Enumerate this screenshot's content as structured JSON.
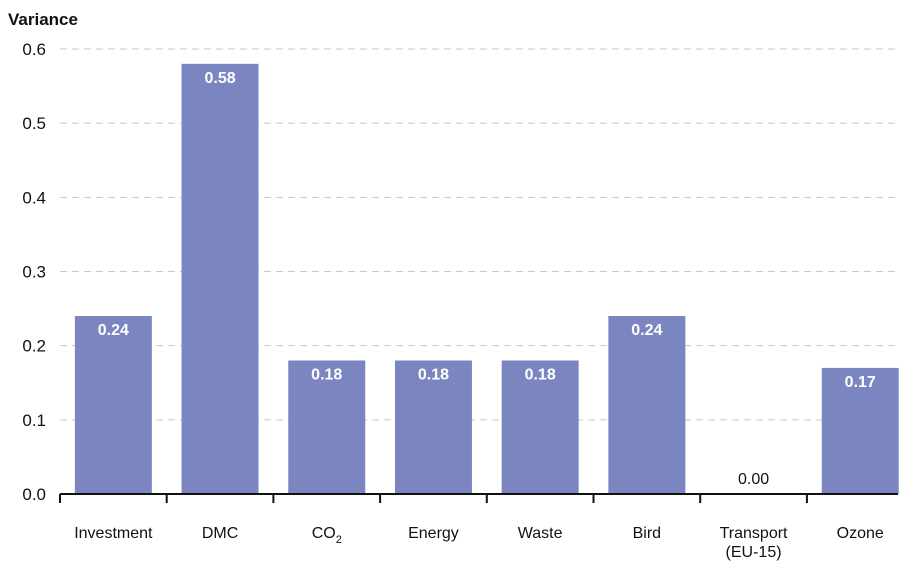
{
  "chart_data": {
    "type": "bar",
    "ylabel": "Variance",
    "ylim": [
      0,
      0.6
    ],
    "yticks": [
      "0.0",
      "0.1",
      "0.2",
      "0.3",
      "0.4",
      "0.5",
      "0.6"
    ],
    "grid": true,
    "bar_color": "#7b86c0",
    "categories": [
      {
        "main": "Investment",
        "sub": "",
        "sub_line": ""
      },
      {
        "main": "DMC",
        "sub": "",
        "sub_line": ""
      },
      {
        "main": "CO",
        "sub": "2",
        "sub_line": ""
      },
      {
        "main": "Energy",
        "sub": "",
        "sub_line": ""
      },
      {
        "main": "Waste",
        "sub": "",
        "sub_line": ""
      },
      {
        "main": "Bird",
        "sub": "",
        "sub_line": ""
      },
      {
        "main": "Transport",
        "sub": "",
        "sub_line": "(EU-15)"
      },
      {
        "main": "Ozone",
        "sub": "",
        "sub_line": ""
      }
    ],
    "values": [
      0.24,
      0.58,
      0.18,
      0.18,
      0.18,
      0.24,
      0.0,
      0.17
    ],
    "labels": [
      "0.24",
      "0.58",
      "0.18",
      "0.18",
      "0.18",
      "0.24",
      "0.00",
      "0.17"
    ]
  }
}
